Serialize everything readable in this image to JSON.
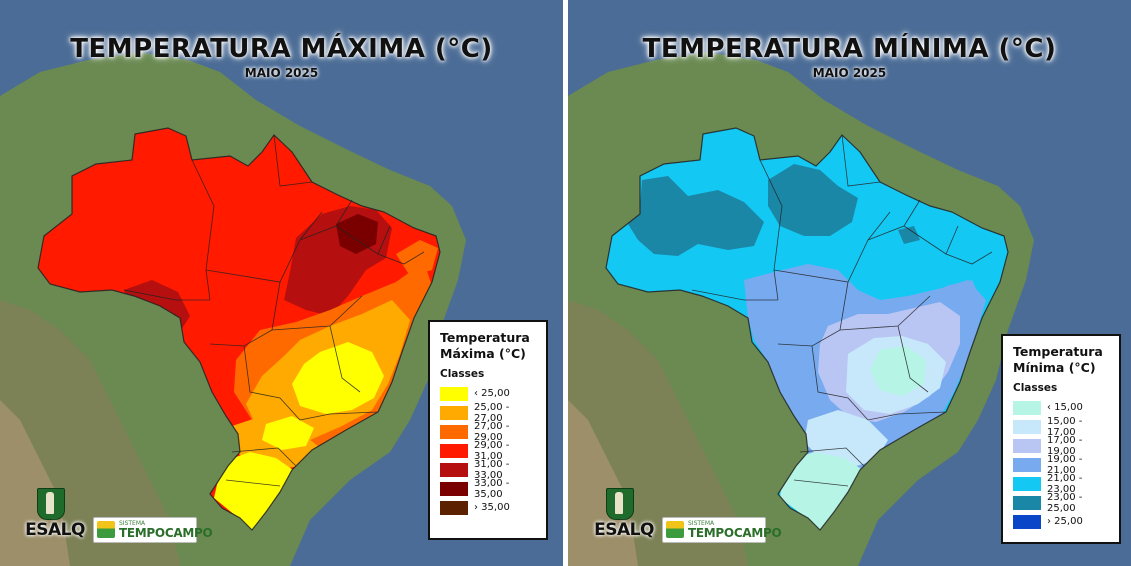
{
  "maps": [
    {
      "title": "TEMPERATURA MÁXIMA (°C)",
      "subtitle": "MAIO 2025",
      "legend": {
        "title_line1": "Temperatura",
        "title_line2": "Máxima (°C)",
        "classes_label": "Classes",
        "items": [
          {
            "label": "‹ 25,00",
            "color": "#ffff00"
          },
          {
            "label": "25,00 - 27,00",
            "color": "#ffaa00"
          },
          {
            "label": "27,00 - 29,00",
            "color": "#ff6a00"
          },
          {
            "label": "29,00 - 31,00",
            "color": "#ff1a00"
          },
          {
            "label": "31,00 - 33,00",
            "color": "#b50f0f"
          },
          {
            "label": "33,00 - 35,00",
            "color": "#7a0000"
          },
          {
            "label": "› 35,00",
            "color": "#5c2200"
          }
        ]
      }
    },
    {
      "title": "TEMPERATURA MÍNIMA (°C)",
      "subtitle": "MAIO 2025",
      "legend": {
        "title_line1": "Temperatura",
        "title_line2": "Mínima (°C)",
        "classes_label": "Classes",
        "items": [
          {
            "label": "‹ 15,00",
            "color": "#b6f5e6"
          },
          {
            "label": "15,00 - 17,00",
            "color": "#c6e8fa"
          },
          {
            "label": "17,00 - 19,00",
            "color": "#b9c6f4"
          },
          {
            "label": "19,00 - 21,00",
            "color": "#78aaf0"
          },
          {
            "label": "21,00 - 23,00",
            "color": "#14c8f4"
          },
          {
            "label": "23,00 - 25,00",
            "color": "#1b87a6"
          },
          {
            "label": "› 25,00",
            "color": "#0a46c8"
          }
        ]
      }
    }
  ],
  "logos": {
    "esalq": "ESALQ",
    "tempocampo_small": "SISTEMA",
    "tempocampo_big": "TEMPOCAMPO"
  }
}
